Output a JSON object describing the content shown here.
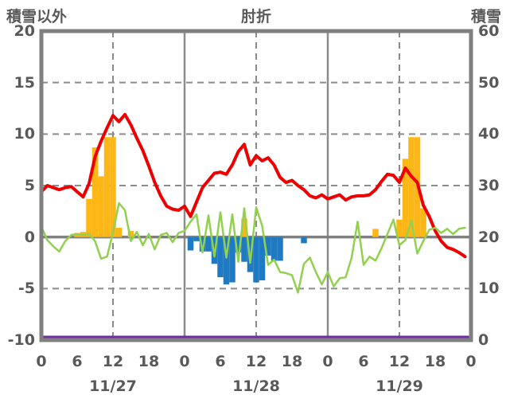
{
  "header": {
    "left_label": "積雪以外",
    "title": "肘折",
    "right_label": "積雪"
  },
  "chart_data": {
    "type": "mixed",
    "title": "肘折",
    "x_axis": {
      "unit": "hour",
      "hours_total": 72,
      "tick_step_hours": 6,
      "tick_labels": [
        "0",
        "6",
        "12",
        "18",
        "0",
        "6",
        "12",
        "18",
        "0",
        "6",
        "12",
        "18",
        "0"
      ],
      "date_labels": [
        "11/27",
        "11/28",
        "11/29"
      ]
    },
    "y_left": {
      "label": "積雪以外",
      "ticks": [
        20,
        15,
        10,
        5,
        0,
        -5,
        -10
      ],
      "range": [
        -10,
        20
      ]
    },
    "y_right": {
      "label": "積雪",
      "ticks": [
        60,
        50,
        40,
        30,
        20,
        10,
        0
      ],
      "range": [
        0,
        60
      ]
    },
    "grid": {
      "h_dashed_at": [
        15,
        10,
        5,
        -5
      ],
      "zero_line_at": 0,
      "v_dashed_at_hours": [
        12,
        36,
        60
      ],
      "v_solid_at_hours": [
        24,
        48
      ]
    },
    "series": [
      {
        "name": "red-line",
        "type": "line",
        "axis": "left",
        "color": "#ee0000",
        "width": 4,
        "values": [
          4.4,
          5.0,
          4.8,
          4.6,
          4.8,
          4.9,
          4.4,
          3.9,
          5.2,
          7.8,
          9.3,
          10.6,
          11.8,
          11.2,
          11.9,
          10.9,
          9.6,
          8.4,
          6.9,
          5.3,
          4.0,
          3.0,
          2.7,
          2.6,
          3.0,
          2.0,
          3.4,
          4.8,
          5.5,
          6.2,
          6.3,
          6.1,
          7.0,
          8.3,
          9.0,
          7.0,
          7.9,
          7.4,
          7.7,
          7.0,
          5.8,
          5.3,
          5.5,
          5.0,
          4.6,
          4.0,
          3.8,
          4.1,
          3.7,
          3.9,
          4.1,
          3.6,
          3.9,
          4.0,
          4.0,
          4.1,
          4.6,
          5.4,
          6.1,
          6.0,
          5.3,
          6.7,
          5.9,
          5.3,
          3.1,
          2.0,
          0.6,
          -0.4,
          -1.0,
          -1.2,
          -1.5,
          -1.9
        ]
      },
      {
        "name": "green-line",
        "type": "line",
        "axis": "left",
        "color": "#92d14f",
        "width": 2.5,
        "values": [
          1.0,
          -0.3,
          -0.9,
          -1.4,
          -0.4,
          0.2,
          0.3,
          0.2,
          0.3,
          -0.4,
          -2.1,
          -1.9,
          0.4,
          3.3,
          2.6,
          -0.4,
          0.5,
          -0.8,
          0.3,
          -1.2,
          0.2,
          0.4,
          -0.5,
          0.4,
          0.6,
          1.5,
          2.2,
          -1.5,
          2.1,
          -1.9,
          2.4,
          -2.0,
          2.2,
          -2.4,
          2.8,
          -2.5,
          2.9,
          1.1,
          -2.7,
          -2.2,
          -3.4,
          -3.5,
          -3.7,
          -5.4,
          -2.6,
          -2.0,
          -3.4,
          -4.6,
          -3.4,
          -4.8,
          -4.0,
          -3.9,
          -2.0,
          1.5,
          -2.7,
          -1.9,
          -2.3,
          -1.1,
          0.3,
          1.7,
          -0.8,
          -0.3,
          1.6,
          -1.6,
          -0.4,
          0.7,
          0.9,
          0.4,
          0.8,
          0.3,
          0.8,
          0.9
        ]
      },
      {
        "name": "orange-bars",
        "type": "bar",
        "axis": "left",
        "color": "#fcb615",
        "values": [
          null,
          null,
          null,
          null,
          null,
          null,
          0.4,
          0.5,
          3.7,
          8.7,
          5.9,
          9.7,
          9.7,
          0.9,
          null,
          0.6,
          null,
          null,
          null,
          null,
          null,
          null,
          null,
          null,
          null,
          null,
          null,
          null,
          null,
          null,
          null,
          null,
          null,
          null,
          1.8,
          null,
          null,
          null,
          null,
          null,
          null,
          null,
          null,
          null,
          null,
          null,
          null,
          null,
          null,
          null,
          null,
          null,
          null,
          null,
          null,
          null,
          0.8,
          null,
          null,
          null,
          1.7,
          7.6,
          9.7,
          9.7,
          2.8,
          null,
          null,
          null,
          null,
          null,
          null,
          null
        ]
      },
      {
        "name": "blue-bars",
        "type": "bar",
        "axis": "left",
        "color": "#1f7ac4",
        "values": [
          null,
          null,
          null,
          null,
          null,
          null,
          null,
          null,
          null,
          null,
          null,
          null,
          null,
          null,
          null,
          null,
          null,
          null,
          null,
          null,
          null,
          null,
          null,
          null,
          null,
          -1.3,
          -0.4,
          -1.4,
          -1.4,
          -2.6,
          -3.9,
          -4.6,
          -4.4,
          -1.5,
          -2.4,
          -3.4,
          -4.4,
          -4.2,
          -1.8,
          -2.3,
          -2.3,
          null,
          null,
          null,
          -0.6,
          null,
          null,
          null,
          null,
          null,
          null,
          null,
          null,
          null,
          null,
          null,
          null,
          null,
          null,
          null,
          null,
          null,
          null,
          null,
          null,
          null,
          null,
          null,
          null,
          null,
          null,
          null
        ]
      },
      {
        "name": "purple-line",
        "type": "constant-line",
        "axis": "right",
        "color": "#7030a0",
        "width": 3,
        "constant_value": 0
      }
    ]
  }
}
